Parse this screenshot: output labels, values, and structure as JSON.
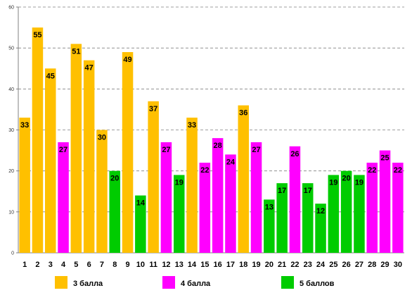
{
  "chart_data": {
    "type": "bar",
    "title": "",
    "xlabel": "",
    "ylabel": "",
    "ylim": [
      0,
      60
    ],
    "yticks": [
      0,
      10,
      20,
      30,
      40,
      50,
      60
    ],
    "grid": true,
    "legend_position": "bottom",
    "categories": [
      "1",
      "2",
      "3",
      "4",
      "5",
      "6",
      "7",
      "8",
      "9",
      "10",
      "11",
      "12",
      "13",
      "14",
      "15",
      "16",
      "17",
      "18",
      "19",
      "20",
      "21",
      "22",
      "23",
      "24",
      "25",
      "26",
      "27",
      "28",
      "29",
      "30"
    ],
    "values": [
      33,
      55,
      45,
      27,
      51,
      47,
      30,
      20,
      49,
      14,
      37,
      27,
      19,
      33,
      22,
      28,
      24,
      36,
      27,
      13,
      17,
      26,
      17,
      12,
      19,
      20,
      19,
      22,
      25,
      22
    ],
    "groups": [
      "3",
      "3",
      "3",
      "4",
      "3",
      "3",
      "3",
      "5",
      "3",
      "5",
      "3",
      "4",
      "5",
      "3",
      "4",
      "4",
      "4",
      "3",
      "4",
      "5",
      "5",
      "4",
      "5",
      "5",
      "5",
      "5",
      "5",
      "4",
      "4",
      "4"
    ],
    "legend": [
      {
        "key": "3",
        "label": "3 балла",
        "color": "#FFC000"
      },
      {
        "key": "4",
        "label": "4 балла",
        "color": "#FF00FF"
      },
      {
        "key": "5",
        "label": "5 баллов",
        "color": "#00CC00"
      }
    ]
  }
}
